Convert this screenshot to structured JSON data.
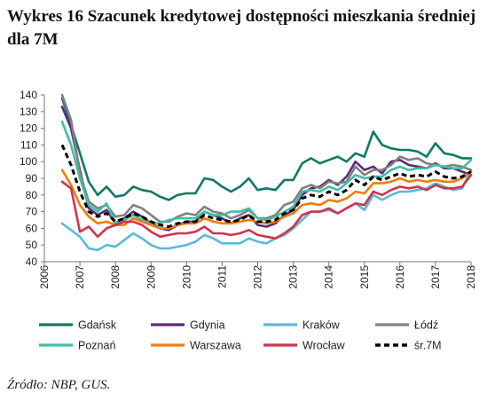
{
  "figure": {
    "title": "Wykres 16 Szacunek kredytowej dostępności mieszkania średniej dla 7M",
    "source": "Źródło: NBP, GUS."
  },
  "chart_data": {
    "type": "line",
    "title": "Wykres 16 Szacunek kredytowej dostępności mieszkania średniej dla 7M",
    "xlabel": "",
    "ylabel": "",
    "x": [
      2006.5,
      2006.75,
      2007.0,
      2007.25,
      2007.5,
      2007.75,
      2008.0,
      2008.25,
      2008.5,
      2008.75,
      2009.0,
      2009.25,
      2009.5,
      2009.75,
      2010.0,
      2010.25,
      2010.5,
      2010.75,
      2011.0,
      2011.25,
      2011.5,
      2011.75,
      2012.0,
      2012.25,
      2012.5,
      2012.75,
      2013.0,
      2013.25,
      2013.5,
      2013.75,
      2014.0,
      2014.25,
      2014.5,
      2014.75,
      2015.0,
      2015.25,
      2015.5,
      2015.75,
      2016.0,
      2016.25,
      2016.5,
      2016.75,
      2017.0,
      2017.25,
      2017.5,
      2017.75,
      2018.0
    ],
    "xlim": [
      2006,
      2018
    ],
    "ylim": [
      40,
      140
    ],
    "xticks": [
      "2006",
      "2007",
      "2008",
      "2009",
      "2010",
      "2011",
      "2012",
      "2013",
      "2014",
      "2015",
      "2016",
      "2017",
      "2018"
    ],
    "yticks": [
      40,
      50,
      60,
      70,
      80,
      90,
      100,
      110,
      120,
      130,
      140
    ],
    "grid": false,
    "legend_position": "bottom",
    "series": [
      {
        "name": "Gdańsk",
        "color": "#0f7a63",
        "dashed": false,
        "values": [
          138,
          122,
          105,
          88,
          80,
          85,
          79,
          80,
          85,
          83,
          82,
          79,
          77,
          80,
          81,
          81,
          90,
          89,
          85,
          82,
          85,
          90,
          83,
          84,
          83,
          89,
          89,
          99,
          102,
          99,
          101,
          103,
          100,
          105,
          103,
          118,
          110,
          108,
          107,
          107,
          106,
          103,
          111,
          105,
          104,
          102,
          102
        ]
      },
      {
        "name": "Gdynia",
        "color": "#5a2c78",
        "dashed": false,
        "values": [
          133,
          120,
          95,
          72,
          68,
          71,
          63,
          66,
          70,
          67,
          63,
          60,
          59,
          62,
          64,
          64,
          70,
          68,
          66,
          63,
          66,
          68,
          62,
          61,
          63,
          68,
          71,
          80,
          84,
          85,
          89,
          86,
          91,
          100,
          95,
          97,
          93,
          100,
          101,
          98,
          97,
          96,
          99,
          96,
          96,
          94,
          92
        ]
      },
      {
        "name": "Kraków",
        "color": "#5bbad8",
        "dashed": false,
        "values": [
          63,
          59,
          55,
          48,
          47,
          50,
          49,
          53,
          57,
          54,
          50,
          48,
          48,
          49,
          50,
          52,
          56,
          54,
          51,
          51,
          51,
          54,
          52,
          51,
          54,
          56,
          60,
          65,
          70,
          70,
          71,
          69,
          72,
          75,
          71,
          80,
          77,
          80,
          82,
          82,
          83,
          84,
          87,
          85,
          83,
          84,
          95
        ]
      },
      {
        "name": "Łódź",
        "color": "#808080",
        "dashed": false,
        "values": [
          140,
          125,
          93,
          76,
          72,
          74,
          67,
          68,
          74,
          72,
          68,
          64,
          64,
          67,
          69,
          68,
          73,
          70,
          69,
          66,
          68,
          71,
          66,
          66,
          68,
          74,
          76,
          84,
          86,
          84,
          88,
          87,
          88,
          97,
          92,
          95,
          95,
          98,
          103,
          101,
          102,
          99,
          98,
          97,
          98,
          97,
          95
        ]
      },
      {
        "name": "Poznań",
        "color": "#3fbfa6",
        "dashed": false,
        "values": [
          124,
          110,
          90,
          74,
          70,
          75,
          63,
          65,
          68,
          65,
          63,
          63,
          65,
          66,
          66,
          66,
          70,
          68,
          68,
          70,
          70,
          72,
          66,
          65,
          67,
          70,
          73,
          82,
          83,
          82,
          85,
          83,
          87,
          92,
          90,
          91,
          91,
          95,
          97,
          95,
          96,
          96,
          98,
          97,
          96,
          96,
          101
        ]
      },
      {
        "name": "Warszawa",
        "color": "#f07d0a",
        "dashed": false,
        "values": [
          95,
          86,
          74,
          67,
          63,
          64,
          62,
          62,
          66,
          64,
          62,
          60,
          60,
          62,
          63,
          63,
          66,
          64,
          63,
          63,
          64,
          65,
          64,
          63,
          64,
          67,
          69,
          74,
          75,
          74,
          77,
          76,
          78,
          82,
          81,
          87,
          87,
          88,
          90,
          88,
          89,
          88,
          89,
          88,
          88,
          90,
          94
        ]
      },
      {
        "name": "Wrocław",
        "color": "#d0334f",
        "dashed": false,
        "values": [
          88,
          84,
          58,
          61,
          55,
          60,
          62,
          64,
          64,
          62,
          58,
          55,
          56,
          57,
          57,
          58,
          61,
          57,
          57,
          56,
          57,
          59,
          56,
          55,
          54,
          57,
          61,
          68,
          70,
          70,
          72,
          69,
          72,
          75,
          74,
          82,
          80,
          83,
          85,
          84,
          85,
          83,
          86,
          84,
          84,
          85,
          92
        ]
      },
      {
        "name": "śr.7M",
        "color": "#000000",
        "dashed": true,
        "values": [
          110,
          98,
          82,
          70,
          67,
          69,
          64,
          66,
          69,
          67,
          64,
          62,
          61,
          63,
          64,
          64,
          68,
          66,
          65,
          64,
          65,
          68,
          64,
          64,
          65,
          69,
          71,
          78,
          80,
          79,
          82,
          80,
          83,
          89,
          86,
          91,
          89,
          91,
          93,
          91,
          92,
          91,
          94,
          91,
          90,
          91,
          94
        ]
      }
    ]
  }
}
